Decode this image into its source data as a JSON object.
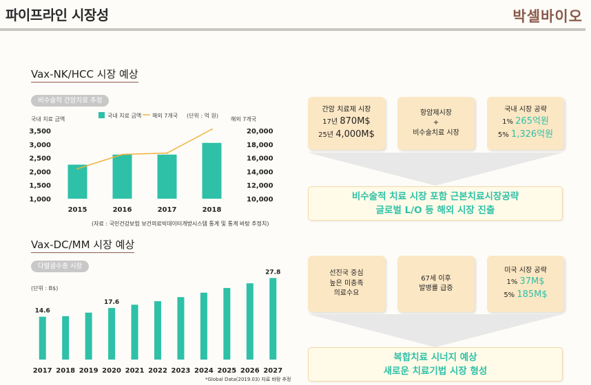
{
  "header": {
    "title": "파이프라인 시장성",
    "logo": "박셀바이오"
  },
  "section1": {
    "title": "Vax-NK/HCC 시장 예상",
    "pill": "비수술적 간암치료 추정",
    "left_axis_title": "국내 치료 금액",
    "right_axis_title": "해외 7개국",
    "legend_bar": "국내 치료 금액",
    "legend_line": "해외 7개국",
    "unit": "(단위 : 억 원)",
    "source": "(자료 : 국민건강보험 보건의료빅데이터개방시스템 통계 및 통계 바탕 추정치)",
    "boxes": [
      {
        "title": "간암 치료제 시장",
        "line1_pre": "17년 ",
        "line1_val": "870M$",
        "line2_pre": "25년 ",
        "line2_val": "4,000M$"
      },
      {
        "title": "항암제시장",
        "line1": "+",
        "line2": "비수술치료 시장"
      },
      {
        "title": "국내 시장 공략",
        "line1_pre": "1% ",
        "line1_val": "265억원",
        "line2_pre": "5% ",
        "line2_val": "1,326억원"
      }
    ],
    "result_line1": "비수술적 치료 시장 포함 근본치료시장공략",
    "result_line2": "글로벌 L/O 등 해외 시장 진출"
  },
  "section2": {
    "title": "Vax-DC/MM 시장 예상",
    "pill": "다발골수종 시장",
    "unit": "(단위 : B$)",
    "source": "*Global Data(2019.03) 자료 바탕 추정",
    "boxes": [
      {
        "line1": "선진국 중심",
        "line2": "높은 미충족",
        "line3": "의료수요"
      },
      {
        "line1": "67세 이후",
        "line2": "발병률 급증"
      },
      {
        "title": "미국 시장 공략",
        "line1_pre": "1% ",
        "line1_val": "37M$",
        "line2_pre": "5% ",
        "line2_val": "185M$"
      }
    ],
    "result_line1": "복합치료 시너지 예상",
    "result_line2": "새로운 치료기법 시장 형성"
  },
  "chart_data": [
    {
      "type": "bar",
      "categories": [
        "2015",
        "2016",
        "2017",
        "2018"
      ],
      "series": [
        {
          "name": "국내 치료 금액",
          "type": "bar",
          "axis": "left",
          "values": [
            2250,
            2620,
            2620,
            3050
          ]
        },
        {
          "name": "해외 7개국",
          "type": "line",
          "axis": "right",
          "values": [
            14400,
            16500,
            16700,
            20200
          ]
        }
      ],
      "ylim_left": [
        1000,
        3500
      ],
      "yticks_left": [
        "1,000",
        "1,500",
        "2,000",
        "2,500",
        "3,000",
        "3,500"
      ],
      "ylim_right": [
        10000,
        20000
      ],
      "yticks_right": [
        "10,000",
        "12,000",
        "14,000",
        "16,000",
        "18,000",
        "20,000"
      ],
      "colors": {
        "bar": "#2fc0a8",
        "line": "#f2b23a"
      }
    },
    {
      "type": "bar",
      "categories": [
        "2017",
        "2018",
        "2019",
        "2020",
        "2021",
        "2022",
        "2023",
        "2024",
        "2025",
        "2026",
        "2027"
      ],
      "values": [
        14.6,
        14.8,
        16.0,
        17.6,
        18.7,
        19.9,
        21.3,
        22.8,
        24.4,
        26.0,
        27.8
      ],
      "data_labels": {
        "0": "14.6",
        "3": "17.6",
        "10": "27.8"
      },
      "ylim": [
        0,
        30
      ],
      "colors": {
        "bar": "#2fc0a8"
      }
    }
  ]
}
